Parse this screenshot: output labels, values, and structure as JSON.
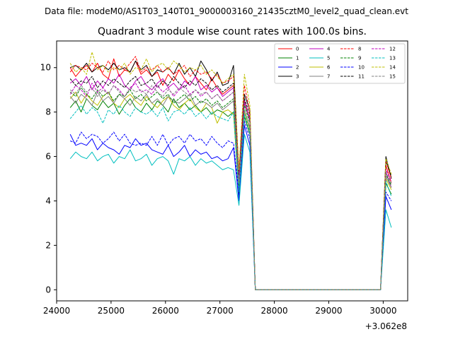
{
  "chart_data": {
    "type": "line",
    "header": "Data file: modeM0/AS1T03_140T01_9000003160_21435cztM0_level2_quad_clean.evt",
    "title": "Quadrant 3 module wise count rates with 100.0s bins.",
    "xlabel": "",
    "ylabel": "",
    "offset_label": "+3.062e8",
    "xlim": [
      24000,
      30450
    ],
    "ylim": [
      -0.5,
      11.2
    ],
    "x_ticks": [
      24000,
      25000,
      26000,
      27000,
      28000,
      29000,
      30000
    ],
    "x_tick_labels": [
      "24000",
      "25000",
      "26000",
      "27000",
      "28000",
      "29000",
      "30000"
    ],
    "y_ticks": [
      0,
      2,
      4,
      6,
      8,
      10
    ],
    "y_tick_labels": [
      "0",
      "2",
      "4",
      "6",
      "8",
      "10"
    ],
    "legend_position": "top-right",
    "segments": [
      {
        "x_start": 24250,
        "x_end": 27250,
        "step": 100
      },
      {
        "x_start": 27350,
        "x_end": 27650,
        "step": 100
      },
      {
        "x_start": 27650,
        "x_end": 29950,
        "step": 100,
        "value": 0
      },
      {
        "x_start": 29950,
        "x_end": 30150,
        "step": 100
      }
    ],
    "series": [
      {
        "name": "0",
        "color": "#ff0000",
        "dash": false,
        "seg1": [
          10.0,
          9.6,
          9.9,
          10.1,
          9.8,
          10.2,
          9.7,
          9.5,
          10.4,
          9.6,
          9.9,
          9.8,
          10.3,
          9.7,
          9.9,
          9.6,
          9.8,
          9.2,
          9.7,
          9.4,
          9.9,
          9.5,
          9.2,
          9.6,
          9.3,
          9.0,
          9.5,
          9.1,
          8.8,
          9.0,
          9.2
        ],
        "seg2": [
          5.0,
          8.5,
          7.7,
          0.0
        ],
        "seg4": [
          0.0,
          5.6,
          4.8
        ]
      },
      {
        "name": "1",
        "color": "#008000",
        "dash": false,
        "seg1": [
          8.2,
          8.5,
          8.0,
          8.6,
          8.3,
          8.1,
          8.5,
          8.2,
          8.4,
          7.9,
          8.3,
          8.6,
          8.2,
          8.0,
          8.4,
          8.1,
          8.5,
          8.3,
          8.0,
          8.6,
          8.2,
          8.4,
          8.1,
          8.3,
          8.0,
          8.2,
          7.9,
          8.1,
          8.0,
          7.8,
          8.0
        ],
        "seg2": [
          4.2,
          7.8,
          7.0,
          0.0
        ],
        "seg4": [
          0.0,
          4.8,
          4.3
        ]
      },
      {
        "name": "2",
        "color": "#0000ff",
        "dash": false,
        "seg1": [
          7.0,
          6.5,
          6.6,
          6.5,
          6.8,
          6.3,
          6.6,
          6.4,
          6.3,
          6.1,
          6.5,
          6.4,
          6.8,
          6.5,
          6.6,
          6.3,
          6.2,
          6.1,
          6.5,
          6.0,
          6.2,
          6.5,
          6.0,
          6.3,
          6.1,
          6.2,
          5.9,
          6.0,
          5.8,
          5.9,
          6.4
        ],
        "seg2": [
          4.0,
          7.4,
          6.5,
          0.0
        ],
        "seg4": [
          0.0,
          4.2,
          3.6
        ]
      },
      {
        "name": "3",
        "color": "#000000",
        "dash": false,
        "seg1": [
          10.0,
          10.1,
          9.9,
          10.2,
          9.8,
          10.0,
          10.1,
          9.9,
          10.2,
          9.9,
          10.0,
          9.8,
          10.3,
          9.9,
          10.1,
          9.6,
          9.9,
          9.8,
          10.0,
          9.7,
          10.2,
          9.7,
          10.0,
          9.6,
          10.3,
          9.9,
          9.4,
          9.8,
          9.2,
          9.3,
          10.1
        ],
        "seg2": [
          5.2,
          8.8,
          8.1,
          0.0
        ],
        "seg4": [
          0.0,
          6.0,
          5.0
        ]
      },
      {
        "name": "4",
        "color": "#bf00bf",
        "dash": false,
        "seg1": [
          9.3,
          9.5,
          9.2,
          9.6,
          9.0,
          9.4,
          9.1,
          9.5,
          9.3,
          9.7,
          9.2,
          9.0,
          9.4,
          9.6,
          9.2,
          9.0,
          9.3,
          9.5,
          9.1,
          9.3,
          9.0,
          9.4,
          9.2,
          9.6,
          9.0,
          9.2,
          8.9,
          9.1,
          8.7,
          8.9,
          9.1
        ],
        "seg2": [
          4.8,
          8.4,
          7.6,
          0.0
        ],
        "seg4": [
          0.0,
          5.3,
          4.6
        ]
      },
      {
        "name": "5",
        "color": "#00bfbf",
        "dash": false,
        "seg1": [
          5.9,
          6.2,
          6.0,
          5.9,
          6.2,
          5.8,
          6.0,
          6.1,
          5.7,
          6.0,
          5.9,
          6.3,
          5.8,
          5.9,
          6.1,
          5.6,
          5.9,
          6.0,
          5.8,
          5.2,
          5.9,
          5.8,
          6.0,
          5.6,
          5.9,
          5.7,
          5.8,
          5.6,
          5.4,
          5.5,
          5.4
        ],
        "seg2": [
          3.8,
          7.0,
          6.2,
          0.0
        ],
        "seg4": [
          0.0,
          3.6,
          2.8
        ]
      },
      {
        "name": "6",
        "color": "#bfbf00",
        "dash": false,
        "seg1": [
          8.6,
          8.9,
          8.4,
          8.8,
          8.5,
          8.3,
          8.7,
          8.9,
          8.4,
          8.2,
          8.6,
          8.8,
          8.5,
          8.3,
          8.7,
          8.4,
          8.2,
          8.5,
          8.7,
          8.3,
          8.1,
          8.4,
          8.6,
          8.2,
          8.0,
          8.4,
          8.2,
          7.5,
          8.0,
          8.1,
          7.9
        ],
        "seg2": [
          4.5,
          8.0,
          7.2,
          0.0
        ],
        "seg4": [
          0.0,
          5.0,
          4.5
        ]
      },
      {
        "name": "7",
        "color": "#808080",
        "dash": false,
        "seg1": [
          8.7,
          8.4,
          8.8,
          8.6,
          8.3,
          8.9,
          8.5,
          8.7,
          8.4,
          8.8,
          8.6,
          8.3,
          8.7,
          8.5,
          8.8,
          8.4,
          8.6,
          8.3,
          8.7,
          8.5,
          8.4,
          8.6,
          8.8,
          8.3,
          8.5,
          8.4,
          8.2,
          8.4,
          8.1,
          8.3,
          8.5
        ],
        "seg2": [
          4.6,
          8.1,
          7.3,
          0.0
        ],
        "seg4": [
          0.0,
          5.1,
          4.6
        ]
      },
      {
        "name": "8",
        "color": "#ff0000",
        "dash": true,
        "seg1": [
          9.8,
          10.1,
          10.0,
          9.9,
          10.2,
          10.0,
          9.8,
          10.3,
          9.9,
          10.1,
          9.9,
          10.2,
          10.5,
          9.8,
          10.0,
          9.9,
          10.1,
          9.8,
          10.0,
          9.7,
          9.9,
          10.1,
          9.6,
          9.9,
          9.7,
          9.8,
          9.5,
          9.7,
          9.3,
          9.4,
          9.6
        ],
        "seg2": [
          5.3,
          9.2,
          8.0,
          0.0
        ],
        "seg4": [
          0.0,
          5.8,
          5.0
        ]
      },
      {
        "name": "9",
        "color": "#008000",
        "dash": true,
        "seg1": [
          8.9,
          8.7,
          9.1,
          8.8,
          8.6,
          9.0,
          8.7,
          8.9,
          8.5,
          8.8,
          8.7,
          9.0,
          8.6,
          8.8,
          8.5,
          8.7,
          8.9,
          8.6,
          8.8,
          8.4,
          8.6,
          8.8,
          8.5,
          8.7,
          8.4,
          8.6,
          8.3,
          8.5,
          8.2,
          8.4,
          8.6
        ],
        "seg2": [
          4.7,
          8.3,
          7.5,
          0.0
        ],
        "seg4": [
          0.0,
          5.2,
          4.7
        ]
      },
      {
        "name": "10",
        "color": "#0000ff",
        "dash": true,
        "seg1": [
          6.7,
          6.6,
          7.1,
          6.8,
          7.0,
          6.9,
          6.6,
          6.8,
          7.1,
          6.7,
          7.0,
          6.6,
          6.5,
          6.6,
          6.5,
          6.9,
          6.5,
          7.0,
          6.5,
          6.8,
          6.9,
          6.6,
          7.0,
          6.7,
          6.8,
          6.5,
          6.9,
          6.6,
          6.4,
          6.7,
          6.6
        ],
        "seg2": [
          4.3,
          7.6,
          6.8,
          0.0
        ],
        "seg4": [
          0.0,
          4.4,
          4.0
        ]
      },
      {
        "name": "11",
        "color": "#000000",
        "dash": true,
        "seg1": [
          9.5,
          9.2,
          9.4,
          9.3,
          9.6,
          9.1,
          9.4,
          9.2,
          9.5,
          9.3,
          9.1,
          9.4,
          9.6,
          9.2,
          9.3,
          9.5,
          9.1,
          9.4,
          9.2,
          9.6,
          9.3,
          9.1,
          9.4,
          9.2,
          9.5,
          9.3,
          9.0,
          9.2,
          8.9,
          9.1,
          9.3
        ],
        "seg2": [
          5.0,
          8.6,
          7.9,
          0.0
        ],
        "seg4": [
          0.0,
          5.8,
          5.1
        ]
      },
      {
        "name": "12",
        "color": "#bf00bf",
        "dash": true,
        "seg1": [
          8.8,
          9.2,
          9.0,
          8.7,
          9.3,
          8.9,
          9.1,
          8.8,
          9.2,
          9.0,
          8.7,
          9.1,
          9.3,
          8.9,
          9.0,
          8.8,
          9.2,
          8.9,
          9.1,
          8.7,
          9.0,
          9.2,
          8.8,
          9.0,
          8.7,
          8.9,
          8.6,
          8.8,
          8.5,
          8.7,
          8.9
        ],
        "seg2": [
          4.9,
          8.5,
          7.7,
          0.0
        ],
        "seg4": [
          0.0,
          5.4,
          4.9
        ]
      },
      {
        "name": "13",
        "color": "#00bfbf",
        "dash": true,
        "seg1": [
          7.7,
          8.0,
          8.3,
          7.9,
          8.2,
          8.0,
          7.5,
          8.1,
          7.9,
          8.3,
          8.0,
          7.8,
          8.2,
          8.0,
          7.9,
          8.1,
          7.8,
          8.2,
          7.6,
          8.0,
          8.1,
          7.9,
          8.2,
          7.8,
          8.0,
          7.7,
          8.0,
          7.8,
          7.7,
          7.6,
          8.0
        ],
        "seg2": [
          4.4,
          7.9,
          7.1,
          0.0
        ],
        "seg4": [
          0.0,
          4.9,
          4.2
        ]
      },
      {
        "name": "14",
        "color": "#bfbf00",
        "dash": true,
        "seg1": [
          10.2,
          9.8,
          10.0,
          9.7,
          10.7,
          9.9,
          10.1,
          9.8,
          10.0,
          9.9,
          10.2,
          9.7,
          10.0,
          9.9,
          10.4,
          9.8,
          10.1,
          10.2,
          9.9,
          10.3,
          10.1,
          9.8,
          10.0,
          9.9,
          10.1,
          9.7,
          9.9,
          9.6,
          9.3,
          9.5,
          9.7
        ],
        "seg2": [
          5.4,
          9.7,
          8.3,
          0.0
        ],
        "seg4": [
          0.0,
          5.9,
          5.2
        ]
      },
      {
        "name": "15",
        "color": "#808080",
        "dash": true,
        "seg1": [
          9.0,
          8.8,
          9.2,
          8.9,
          9.1,
          8.7,
          9.0,
          8.8,
          9.2,
          8.9,
          8.7,
          9.1,
          8.9,
          9.0,
          8.8,
          9.2,
          8.9,
          8.7,
          9.0,
          8.8,
          9.1,
          8.9,
          8.7,
          9.0,
          8.8,
          8.9,
          8.6,
          8.8,
          8.5,
          8.7,
          8.9
        ],
        "seg2": [
          4.8,
          8.4,
          7.6,
          0.0
        ],
        "seg4": [
          0.0,
          5.3,
          4.8
        ]
      }
    ]
  }
}
